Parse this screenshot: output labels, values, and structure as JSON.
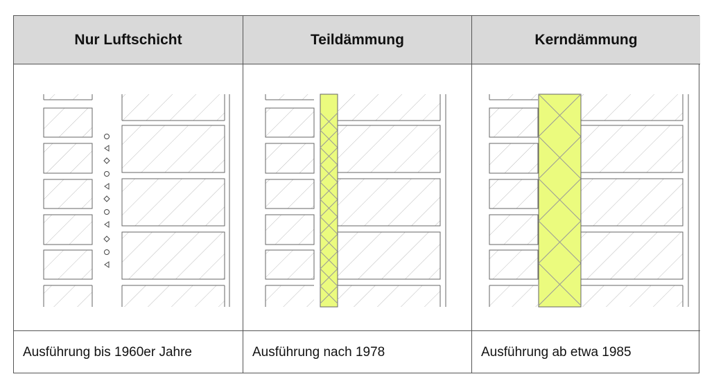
{
  "columns": [
    {
      "header": "Nur Luftschicht",
      "caption": "Ausführung bis 1960er Jahre",
      "insulation": "none"
    },
    {
      "header": "Teildämmung",
      "caption": "Ausführung nach 1978",
      "insulation": "partial"
    },
    {
      "header": "Kerndämmung",
      "caption": "Ausführung ab etwa 1985",
      "insulation": "full"
    }
  ],
  "colors": {
    "header_bg": "#d9d9d9",
    "insulation": "#ebfb7e",
    "line": "#666666",
    "hatch": "#bdbdbd"
  }
}
